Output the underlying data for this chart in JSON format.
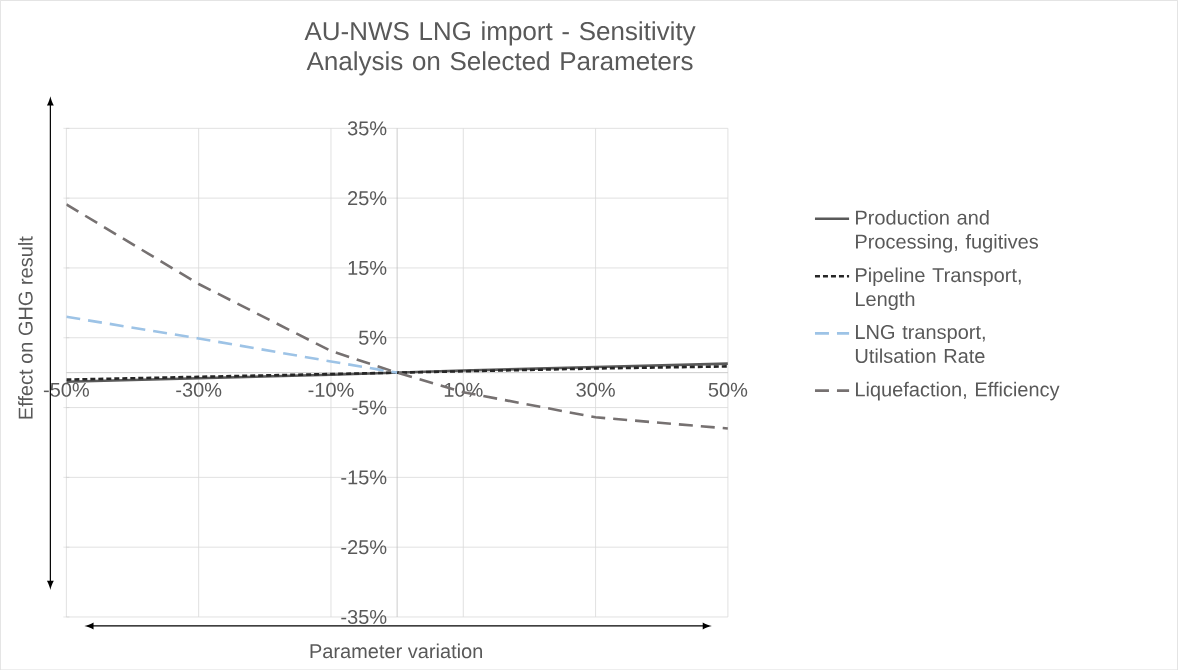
{
  "chart_data": {
    "type": "line",
    "title": "AU-NWS LNG import - Sensitivity Analysis on Selected Parameters",
    "xlabel": "Parameter variation",
    "ylabel": "Effect on GHG result",
    "x": [
      -50,
      -30,
      -10,
      0,
      10,
      30,
      50
    ],
    "series": [
      {
        "name": "Production and Processing, fugitives",
        "color": "#595959",
        "line_style": "solid",
        "values": [
          -1.3,
          -0.8,
          -0.3,
          0,
          0.3,
          0.8,
          1.3
        ]
      },
      {
        "name": "Pipeline Transport, Length",
        "color": "#262626",
        "line_style": "dotted",
        "values": [
          -1.0,
          -0.6,
          -0.2,
          0,
          0.2,
          0.6,
          0.9
        ]
      },
      {
        "name": "LNG transport, Utilsation Rate",
        "color": "#9dc3e6",
        "line_style": "dashed",
        "values": [
          8.0,
          4.9,
          1.6,
          0,
          null,
          null,
          null
        ]
      },
      {
        "name": "Liquefaction, Efficiency",
        "color": "#767171",
        "line_style": "dashed",
        "values": [
          24.1,
          12.7,
          3.1,
          0,
          -2.8,
          -6.4,
          -8.0
        ]
      }
    ],
    "xlim": [
      -50,
      50
    ],
    "ylim": [
      -35,
      35
    ],
    "xticks": [
      {
        "value": -50,
        "label": "-50%"
      },
      {
        "value": -30,
        "label": "-30%"
      },
      {
        "value": -10,
        "label": "-10%"
      },
      {
        "value": 10,
        "label": "10%"
      },
      {
        "value": 30,
        "label": "30%"
      },
      {
        "value": 50,
        "label": "50%"
      }
    ],
    "yticks": [
      {
        "value": -35,
        "label": "-35%"
      },
      {
        "value": -25,
        "label": "-25%"
      },
      {
        "value": -15,
        "label": "-15%"
      },
      {
        "value": -5,
        "label": "-5%"
      },
      {
        "value": 5,
        "label": "5%"
      },
      {
        "value": 15,
        "label": "15%"
      },
      {
        "value": 25,
        "label": "25%"
      },
      {
        "value": 35,
        "label": "35%"
      }
    ],
    "grid": true,
    "legend": "right"
  }
}
